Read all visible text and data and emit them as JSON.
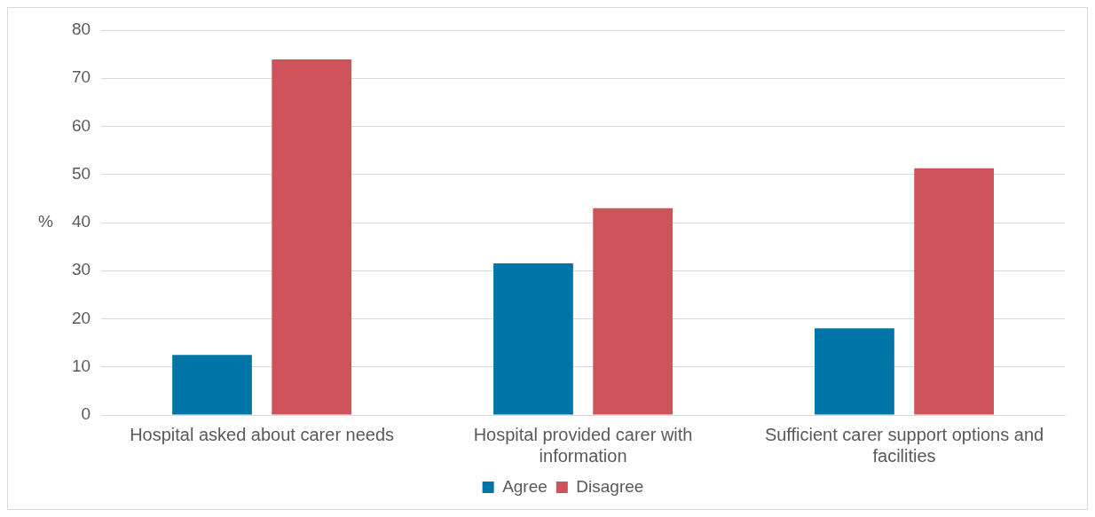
{
  "chart_data": {
    "type": "bar",
    "ylabel": "%",
    "categories": [
      "Hospital asked about carer needs",
      "Hospital provided carer with information",
      "Sufficient carer support options and facilities"
    ],
    "series": [
      {
        "name": "Agree",
        "color": "#0076a8",
        "values": [
          12.5,
          31.5,
          18
        ]
      },
      {
        "name": "Disagree",
        "color": "#cf535a",
        "values": [
          73.9,
          43,
          51.3
        ]
      }
    ],
    "ylim": [
      0,
      80
    ],
    "yticks": [
      0,
      10,
      20,
      30,
      40,
      50,
      60,
      70,
      80
    ],
    "grid": "y",
    "legend": "bottom"
  }
}
